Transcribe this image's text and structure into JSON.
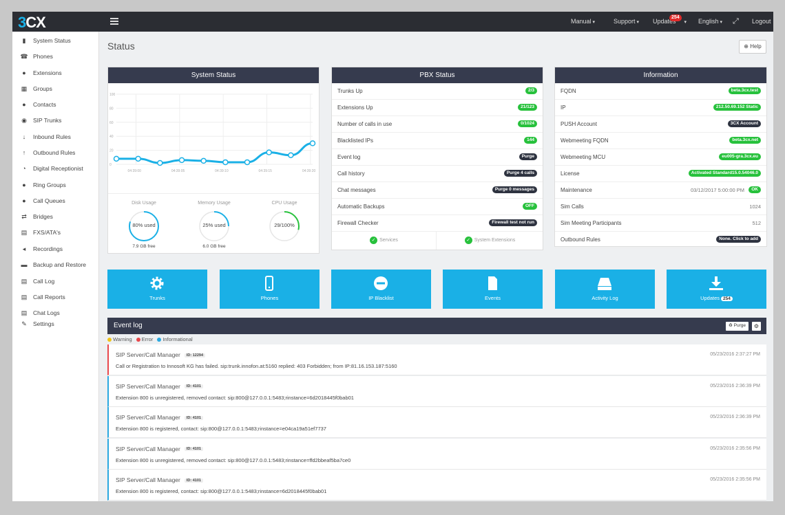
{
  "app": {
    "logo": "3CX",
    "logo_accent": "#1ab0e6"
  },
  "topnav": {
    "manual": "Manual",
    "support": "Support",
    "updates": "Updates",
    "updates_count": "254",
    "language": "English",
    "logout": "Logout"
  },
  "sidebar": {
    "items": [
      {
        "label": "System Status",
        "icon": "bar-chart-icon",
        "glyph": "▮"
      },
      {
        "label": "Phones",
        "icon": "phone-icon",
        "glyph": "☎"
      },
      {
        "label": "Extensions",
        "icon": "user-icon",
        "glyph": "●"
      },
      {
        "label": "Groups",
        "icon": "grid-icon",
        "glyph": "▦"
      },
      {
        "label": "Contacts",
        "icon": "contact-icon",
        "glyph": "●"
      },
      {
        "label": "SIP Trunks",
        "icon": "globe-icon",
        "glyph": "◉"
      },
      {
        "label": "Inbound Rules",
        "icon": "arrow-down-icon",
        "glyph": "↓"
      },
      {
        "label": "Outbound Rules",
        "icon": "arrow-up-icon",
        "glyph": "↑"
      },
      {
        "label": "Digital Receptionist",
        "icon": "headset-icon",
        "glyph": "◔"
      },
      {
        "label": "Ring Groups",
        "icon": "users-icon",
        "glyph": "●"
      },
      {
        "label": "Call Queues",
        "icon": "queue-icon",
        "glyph": "●"
      },
      {
        "label": "Bridges",
        "icon": "exchange-icon",
        "glyph": "⇄"
      },
      {
        "label": "FXS/ATA's",
        "icon": "fax-icon",
        "glyph": "▤"
      },
      {
        "label": "Recordings",
        "icon": "speaker-icon",
        "glyph": "◂"
      },
      {
        "label": "Backup and Restore",
        "icon": "folder-icon",
        "glyph": "▬"
      },
      {
        "label": "Call Log",
        "icon": "list-icon",
        "glyph": "▤"
      },
      {
        "label": "Call Reports",
        "icon": "report-icon",
        "glyph": "▤"
      },
      {
        "label": "Chat Logs",
        "icon": "chat-icon",
        "glyph": "▤"
      },
      {
        "label": "Settings",
        "icon": "wrench-icon",
        "glyph": "✎"
      }
    ]
  },
  "page": {
    "title": "Status",
    "help": "Help"
  },
  "system_status": {
    "title": "System Status",
    "gauges": [
      {
        "label": "Disk Usage",
        "value": "80% used",
        "sub": "7.9 GB free",
        "fraction": 0.8
      },
      {
        "label": "Memory Usage",
        "value": "25% used",
        "sub": "6.0 GB free",
        "fraction": 0.25
      },
      {
        "label": "CPU Usage",
        "value": "29/100%",
        "sub": "",
        "fraction": 0.29
      }
    ]
  },
  "chart_data": {
    "type": "line",
    "yticks": [
      "100",
      "80",
      "60",
      "40",
      "20",
      "0"
    ],
    "ylim": [
      0,
      100
    ],
    "xticks": [
      "04:39:00",
      "04:39:05",
      "04:39:10",
      "04:39:15",
      "04:39:20"
    ],
    "values": [
      8,
      8,
      2,
      6,
      5,
      3,
      3,
      17,
      13,
      30
    ],
    "color": "#1ab0e6"
  },
  "pbx_status": {
    "title": "PBX Status",
    "rows": [
      {
        "label": "Trunks Up",
        "badge": "2/3",
        "color": "green"
      },
      {
        "label": "Extensions Up",
        "badge": "21/123",
        "color": "green"
      },
      {
        "label": "Number of calls in use",
        "badge": "0/1024",
        "color": "green"
      },
      {
        "label": "Blacklisted IPs",
        "badge": "144",
        "color": "green"
      },
      {
        "label": "Event log",
        "badge": "Purge",
        "color": "dark"
      },
      {
        "label": "Call history",
        "badge": "Purge 4 calls",
        "color": "dark"
      },
      {
        "label": "Chat messages",
        "badge": "Purge 0 messages",
        "color": "dark"
      },
      {
        "label": "Automatic Backups",
        "badge": "OFF",
        "color": "green"
      },
      {
        "label": "Firewall Checker",
        "badge": "Firewall test not run",
        "color": "dark"
      }
    ],
    "footer": {
      "services": "Services",
      "system_extensions": "System Extensions"
    }
  },
  "information": {
    "title": "Information",
    "rows": [
      {
        "label": "FQDN",
        "badge": "beta.3cx.test",
        "color": "green"
      },
      {
        "label": "IP",
        "badge": "212.50.69.152 Static",
        "color": "green"
      },
      {
        "label": "PUSH Account",
        "badge": "3CX Account",
        "color": "dark"
      },
      {
        "label": "Webmeeting FQDN",
        "badge": "beta.3cx.net",
        "color": "green"
      },
      {
        "label": "Webmeeting MCU",
        "badge": "eu005-gra.3cx.eu",
        "color": "green"
      },
      {
        "label": "License",
        "badge": "Activated Standard15.0.54046.0",
        "color": "green"
      },
      {
        "label": "Maintenance",
        "text": "03/12/2017 5:00:00 PM",
        "badge": "OK",
        "color": "green"
      },
      {
        "label": "Sim Calls",
        "text": "1024"
      },
      {
        "label": "Sim Meeting Participants",
        "text": "512"
      },
      {
        "label": "Outbound Rules",
        "badge": "None. Click to add",
        "color": "dark"
      }
    ]
  },
  "tiles": [
    {
      "label": "Trunks",
      "icon": "gear-icon"
    },
    {
      "label": "Phones",
      "icon": "mobile-icon"
    },
    {
      "label": "IP Blacklist",
      "icon": "minus-circle-icon"
    },
    {
      "label": "Events",
      "icon": "document-icon"
    },
    {
      "label": "Activity Log",
      "icon": "drive-icon"
    },
    {
      "label": "Updates",
      "icon": "download-icon",
      "badge": "254"
    }
  ],
  "event_log": {
    "title": "Event log",
    "purge": "Purge",
    "legend": [
      {
        "label": "Warning",
        "color": "#f0c419"
      },
      {
        "label": "Error",
        "color": "#e8484c"
      },
      {
        "label": "Informational",
        "color": "#2aa8e0"
      }
    ],
    "events": [
      {
        "source": "SIP Server/Call Manager",
        "id": "ID: 12294",
        "message": "Call or Registration to Innosoft KG has failed. sip:trunk.innofon.at:5160 replied: 403 Forbidden; from IP:81.16.153.187:5160",
        "time": "05/23/2016 2:37:27 PM",
        "level": "error"
      },
      {
        "source": "SIP Server/Call Manager",
        "id": "ID: 4101",
        "message": "Extension 800 is unregistered, removed contact: sip:800@127.0.0.1:5483;rinstance=6d2018445f0bab01",
        "time": "05/23/2016 2:36:39 PM",
        "level": "info"
      },
      {
        "source": "SIP Server/Call Manager",
        "id": "ID: 4101",
        "message": "Extension 800 is registered, contact: sip:800@127.0.0.1:5483;rinstance=e04ca19a51ef7737",
        "time": "05/23/2016 2:36:39 PM",
        "level": "info"
      },
      {
        "source": "SIP Server/Call Manager",
        "id": "ID: 4101",
        "message": "Extension 800 is unregistered, removed contact: sip:800@127.0.0.1:5483;rinstance=ffd2bbeaf5ba7ce0",
        "time": "05/23/2016 2:35:56 PM",
        "level": "info"
      },
      {
        "source": "SIP Server/Call Manager",
        "id": "ID: 4101",
        "message": "Extension 800 is registered, contact: sip:800@127.0.0.1:5483;rinstance=6d2018445f0bab01",
        "time": "05/23/2016 2:35:56 PM",
        "level": "info"
      }
    ]
  }
}
